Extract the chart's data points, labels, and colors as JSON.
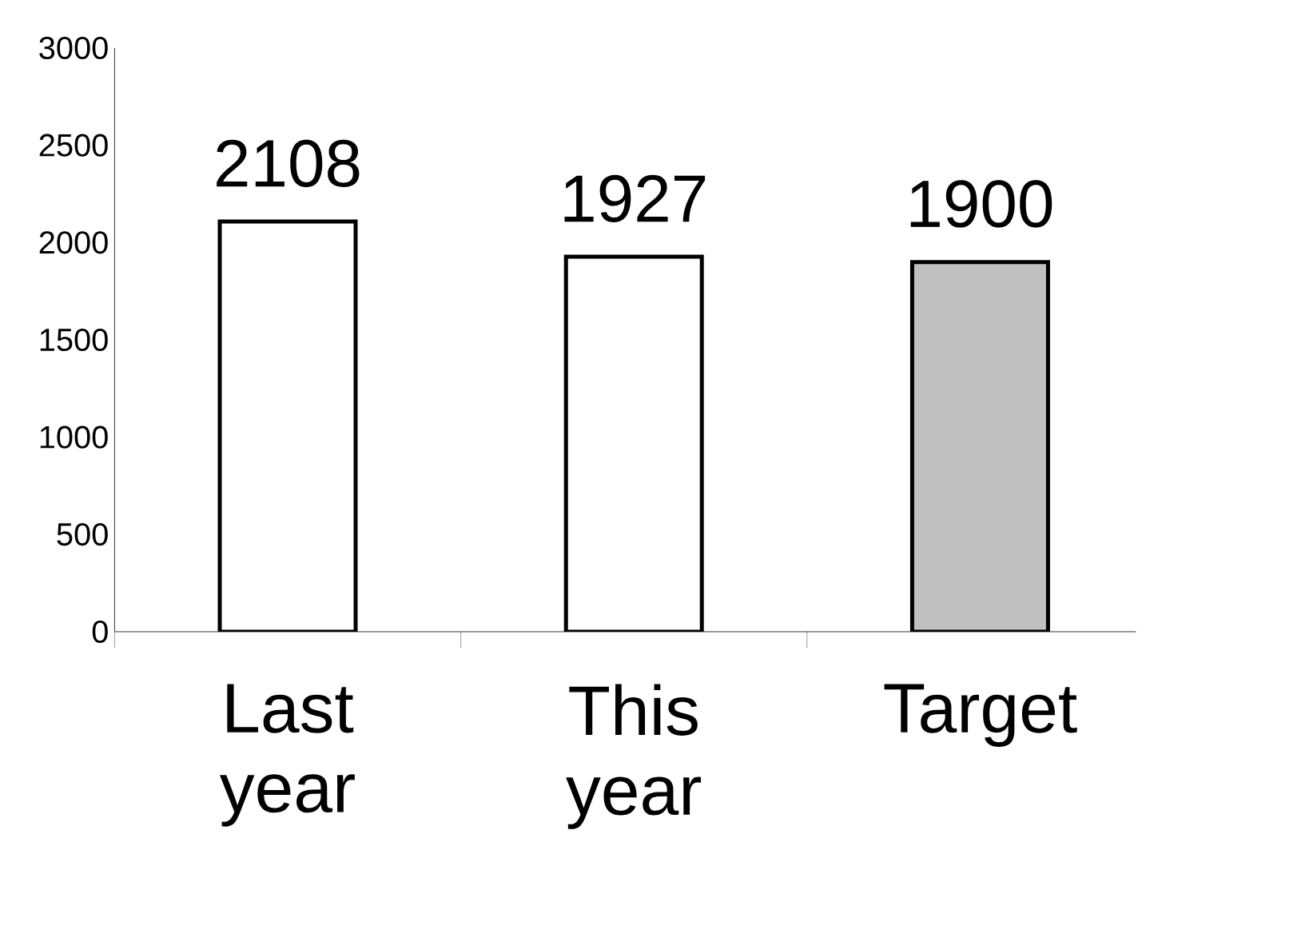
{
  "chart_data": {
    "type": "bar",
    "categories": [
      "Last year",
      "This year",
      "Target"
    ],
    "values": [
      2108,
      1927,
      1900
    ],
    "colors": [
      "#ffffff",
      "#ffffff",
      "#c0c0c0"
    ],
    "ylim": [
      0,
      3000
    ],
    "yticks": [
      0,
      500,
      1000,
      1500,
      2000,
      2500,
      3000
    ],
    "data_labels": true
  }
}
